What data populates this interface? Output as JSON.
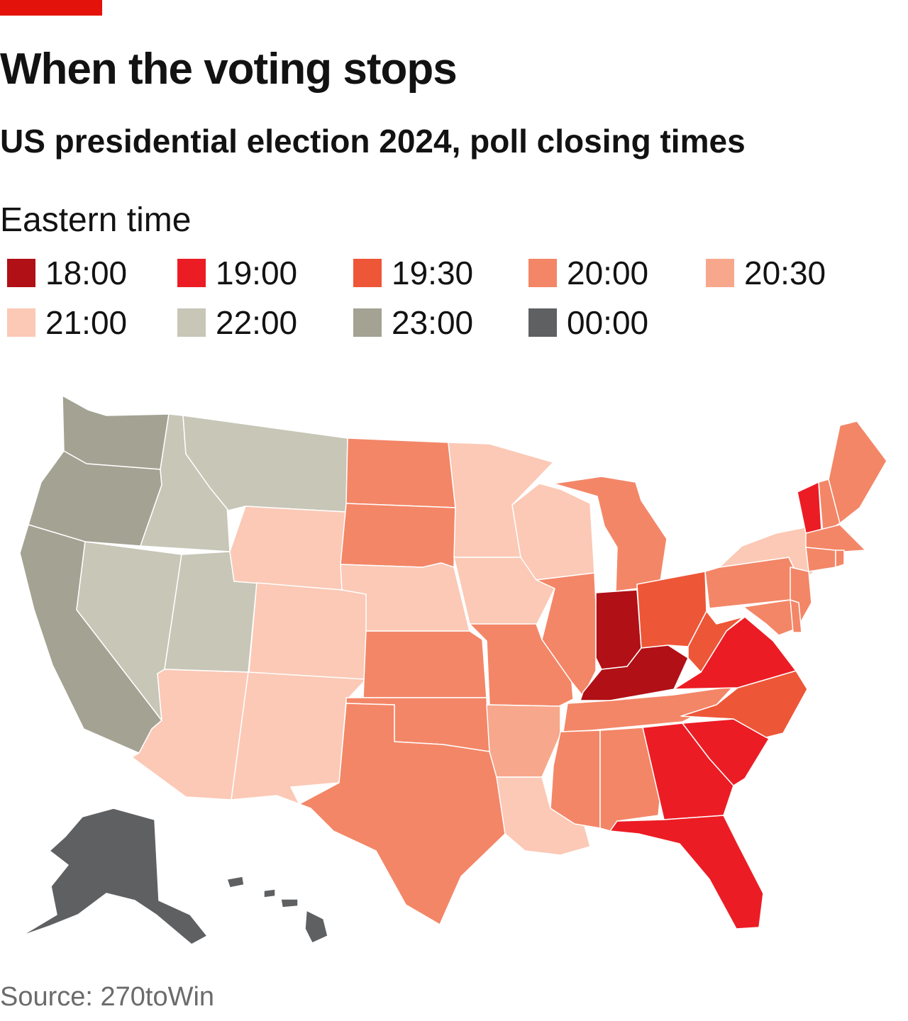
{
  "header": {
    "title": "When the voting stops",
    "subtitle": "US presidential election 2024, poll closing times"
  },
  "legend": {
    "title": "Eastern time",
    "items": [
      {
        "label": "18:00",
        "color": "#b01016"
      },
      {
        "label": "19:00",
        "color": "#ec1c24"
      },
      {
        "label": "19:30",
        "color": "#ee5638"
      },
      {
        "label": "20:00",
        "color": "#f38667"
      },
      {
        "label": "20:30",
        "color": "#f7a88c"
      },
      {
        "label": "21:00",
        "color": "#fbc9b6"
      },
      {
        "label": "22:00",
        "color": "#c7c6b7"
      },
      {
        "label": "23:00",
        "color": "#a4a293"
      },
      {
        "label": "00:00",
        "color": "#5f6062"
      }
    ]
  },
  "map_data": {
    "type": "choropleth",
    "states": {
      "WA": "23:00",
      "OR": "23:00",
      "CA": "23:00",
      "ID": "22:00",
      "MT": "22:00",
      "NV": "22:00",
      "UT": "22:00",
      "WY": "21:00",
      "CO": "21:00",
      "AZ": "21:00",
      "NM": "21:00",
      "NE": "21:00",
      "SD": "20:00",
      "ND": "20:00",
      "MN": "21:00",
      "IA": "21:00",
      "WI": "21:00",
      "NY": "21:00",
      "LA": "21:00",
      "KS": "20:00",
      "OK": "20:00",
      "TX": "20:00",
      "MO": "20:00",
      "IL": "20:00",
      "MS": "20:00",
      "AL": "20:00",
      "TN": "20:00",
      "MI": "20:00",
      "PA": "20:00",
      "NJ": "20:00",
      "DE": "20:00",
      "MD": "20:00",
      "CT": "20:00",
      "RI": "20:00",
      "MA": "20:00",
      "NH": "20:00",
      "ME": "20:00",
      "DC": "20:00",
      "AR": "20:30",
      "NC": "19:30",
      "OH": "19:30",
      "WV": "19:30",
      "VA": "19:00",
      "GA": "19:00",
      "SC": "19:00",
      "VT": "19:00",
      "FL": "19:00",
      "IN": "18:00",
      "KY": "18:00",
      "AK": "00:00",
      "HI": "00:00"
    }
  },
  "source": "Source: 270toWin"
}
